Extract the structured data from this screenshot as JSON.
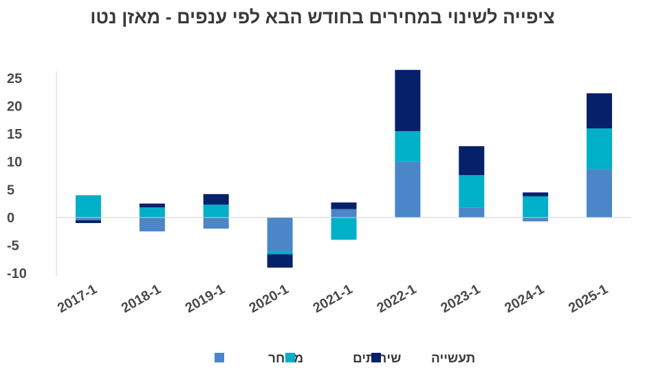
{
  "chart_data": {
    "type": "bar",
    "stacked": true,
    "title": "ציפייה לשינוי במחירים בחודש הבא לפי ענפים - מאזן נטו",
    "categories": [
      "2017-1",
      "2018-1",
      "2019-1",
      "2020-1",
      "2021-1",
      "2022-1",
      "2023-1",
      "2024-1",
      "2025-1"
    ],
    "series": [
      {
        "name": "מסחר",
        "color": "#4a86c8",
        "values": [
          -0.5,
          -2.5,
          -2,
          -6,
          1.5,
          10,
          1.8,
          -0.7,
          8.7
        ]
      },
      {
        "name": "שירותים",
        "color": "#00b0c8",
        "values": [
          4,
          1.8,
          2.3,
          -0.6,
          -4,
          5.5,
          5.8,
          3.8,
          7.3
        ]
      },
      {
        "name": "תעשייה",
        "color": "#06206a",
        "values": [
          -0.5,
          0.7,
          1.9,
          -2.4,
          1.2,
          11,
          5.2,
          0.7,
          6.3
        ]
      }
    ],
    "ylim": [
      -10,
      25
    ],
    "yticks": [
      -10,
      -5,
      0,
      5,
      10,
      15,
      20,
      25
    ],
    "grid": false,
    "legend": "bottom-center"
  }
}
